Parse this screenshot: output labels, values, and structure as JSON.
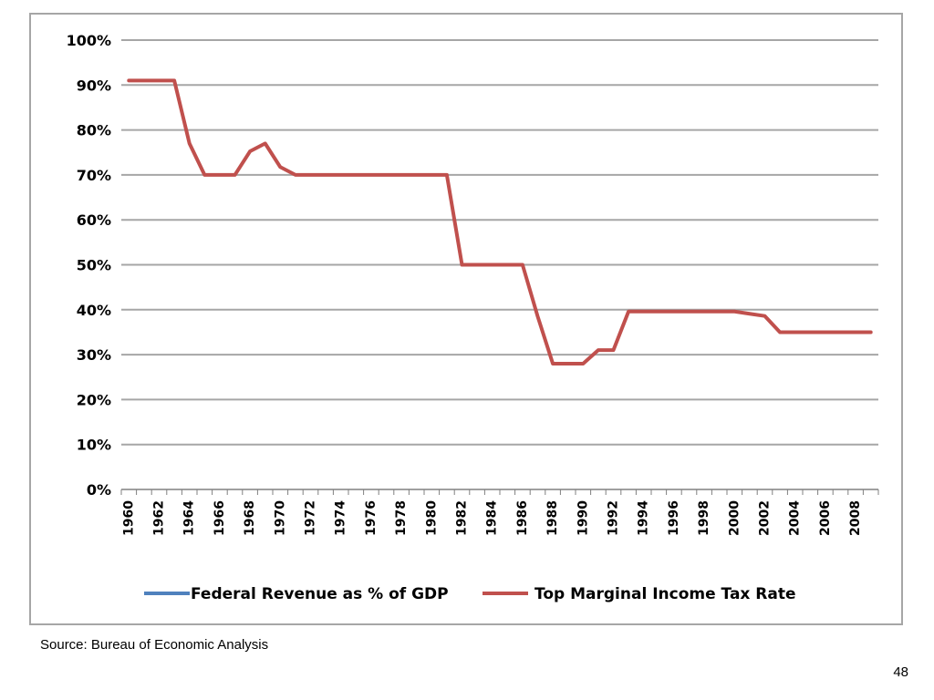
{
  "chart_data": {
    "type": "line",
    "title": "",
    "xlabel": "",
    "ylabel": "",
    "ylim": [
      0,
      100
    ],
    "y_ticks": [
      "0%",
      "10%",
      "20%",
      "30%",
      "40%",
      "50%",
      "60%",
      "70%",
      "80%",
      "90%",
      "100%"
    ],
    "x_ticks": [
      "1960",
      "1962",
      "1964",
      "1966",
      "1968",
      "1970",
      "1972",
      "1974",
      "1976",
      "1978",
      "1980",
      "1982",
      "1984",
      "1986",
      "1988",
      "1990",
      "1992",
      "1994",
      "1996",
      "1998",
      "2000",
      "2002",
      "2004",
      "2006",
      "2008"
    ],
    "x_range": [
      1960,
      2009
    ],
    "grid": "horizontal",
    "legend_position": "bottom",
    "series": [
      {
        "name": "Federal Revenue as % of GDP",
        "color": "#4f81bd",
        "x": [],
        "values": []
      },
      {
        "name": "Top Marginal Income Tax Rate",
        "color": "#c0504d",
        "x": [
          1960,
          1961,
          1962,
          1963,
          1964,
          1965,
          1966,
          1967,
          1968,
          1969,
          1970,
          1971,
          1972,
          1973,
          1974,
          1975,
          1976,
          1977,
          1978,
          1979,
          1980,
          1981,
          1982,
          1983,
          1984,
          1985,
          1986,
          1987,
          1988,
          1989,
          1990,
          1991,
          1992,
          1993,
          1994,
          1995,
          1996,
          1997,
          1998,
          1999,
          2000,
          2001,
          2002,
          2003,
          2004,
          2005,
          2006,
          2007,
          2008,
          2009
        ],
        "values": [
          91,
          91,
          91,
          91,
          77,
          70,
          70,
          70,
          75.25,
          77,
          71.75,
          70,
          70,
          70,
          70,
          70,
          70,
          70,
          70,
          70,
          70,
          70,
          50,
          50,
          50,
          50,
          50,
          38.5,
          28,
          28,
          28,
          31,
          31,
          39.6,
          39.6,
          39.6,
          39.6,
          39.6,
          39.6,
          39.6,
          39.6,
          39.1,
          38.6,
          35,
          35,
          35,
          35,
          35,
          35,
          35
        ]
      }
    ]
  },
  "source_note": "Source:  Bureau of Economic Analysis",
  "page_number": "48"
}
